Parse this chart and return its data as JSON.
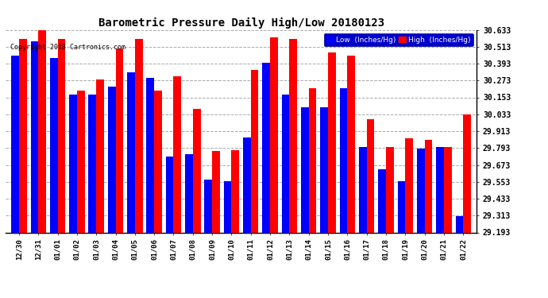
{
  "title": "Barometric Pressure Daily High/Low 20180123",
  "copyright": "Copyright 2018 Cartronics.com",
  "legend_low": "Low  (Inches/Hg)",
  "legend_high": "High  (Inches/Hg)",
  "dates": [
    "12/30",
    "12/31",
    "01/01",
    "01/02",
    "01/03",
    "01/04",
    "01/05",
    "01/06",
    "01/07",
    "01/08",
    "01/09",
    "01/10",
    "01/11",
    "01/12",
    "01/13",
    "01/14",
    "01/15",
    "01/16",
    "01/17",
    "01/18",
    "01/19",
    "01/20",
    "01/21",
    "01/22"
  ],
  "low": [
    30.45,
    30.55,
    30.43,
    30.17,
    30.17,
    30.23,
    30.33,
    30.29,
    29.73,
    29.75,
    29.57,
    29.56,
    29.87,
    30.4,
    30.17,
    30.08,
    30.08,
    30.22,
    29.8,
    29.64,
    29.56,
    29.79,
    29.8,
    29.31
  ],
  "high": [
    30.57,
    30.63,
    30.57,
    30.2,
    30.28,
    30.5,
    30.57,
    30.2,
    30.3,
    30.07,
    29.77,
    29.78,
    30.35,
    30.58,
    30.57,
    30.22,
    30.47,
    30.45,
    30.0,
    29.8,
    29.86,
    29.85,
    29.8,
    30.03
  ],
  "ylim_min": 29.193,
  "ylim_max": 30.633,
  "yticks": [
    29.193,
    29.313,
    29.433,
    29.553,
    29.673,
    29.793,
    29.913,
    30.033,
    30.153,
    30.273,
    30.393,
    30.513,
    30.633
  ],
  "bg_color": "#ffffff",
  "bar_color_low": "#0000ff",
  "bar_color_high": "#ff0000",
  "grid_color": "#aaaaaa",
  "title_color": "#000000",
  "bar_width": 0.4
}
